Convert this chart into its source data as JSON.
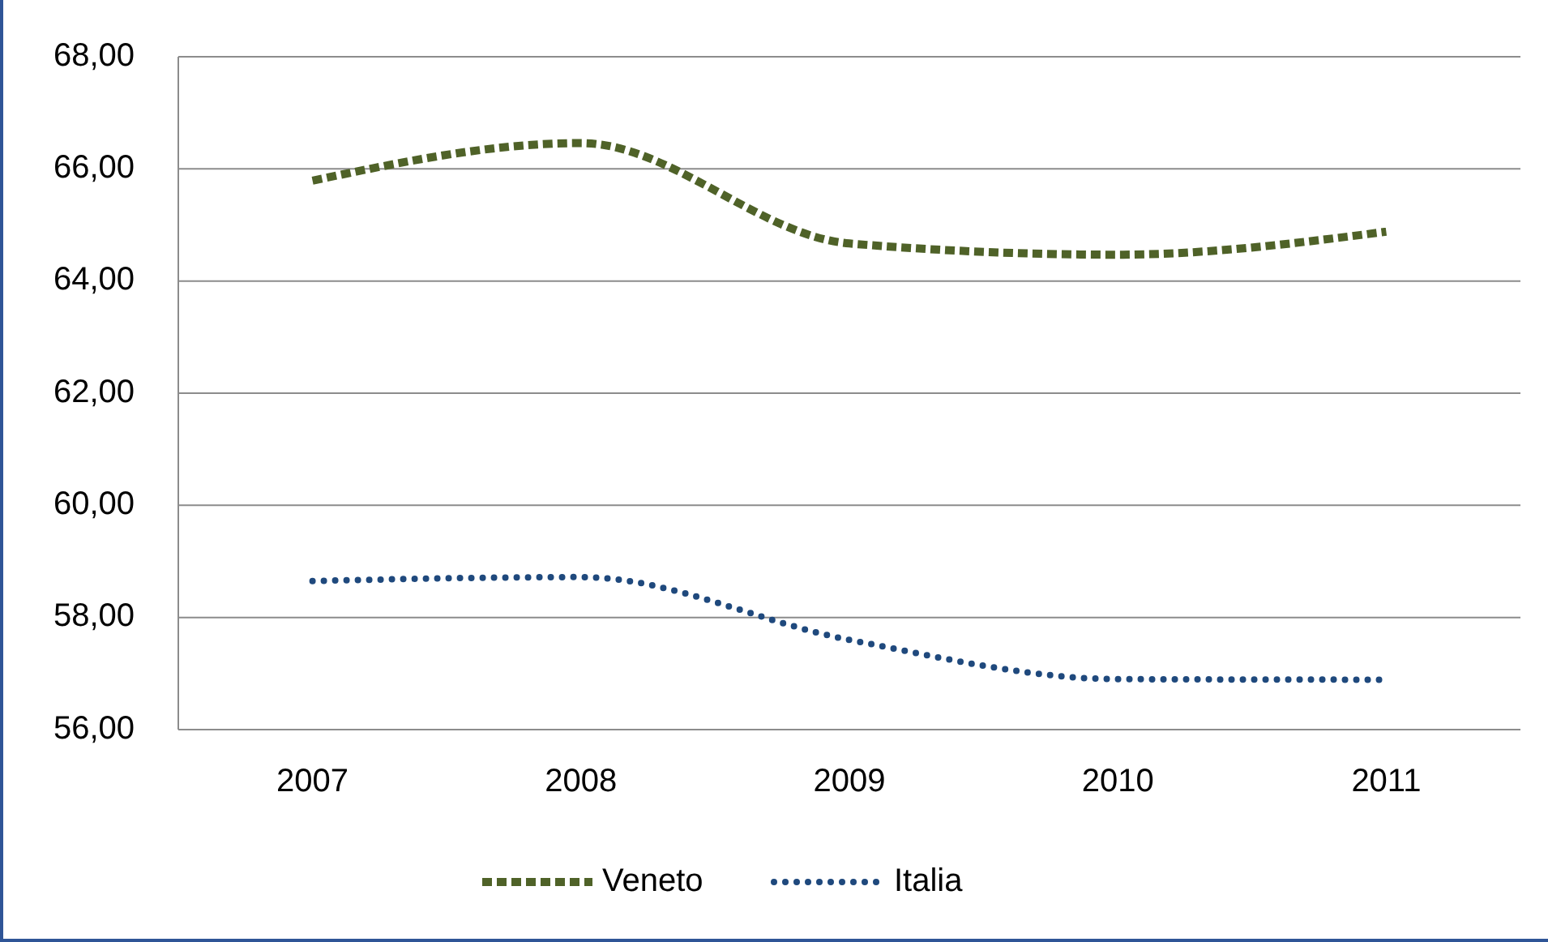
{
  "chart_data": {
    "type": "line",
    "categories": [
      "2007",
      "2008",
      "2009",
      "2010",
      "2011"
    ],
    "series": [
      {
        "name": "Veneto",
        "color": "#4f6228",
        "values": [
          65.79,
          66.46,
          64.67,
          64.47,
          64.88
        ],
        "line_style": "dashed"
      },
      {
        "name": "Italia",
        "color": "#1f497d",
        "values": [
          58.65,
          58.72,
          57.6,
          56.9,
          56.89
        ],
        "line_style": "dotted"
      }
    ],
    "ylim": [
      56,
      68
    ],
    "yticks": [
      {
        "value": 56,
        "label": "56,00"
      },
      {
        "value": 58,
        "label": "58,00"
      },
      {
        "value": 60,
        "label": "60,00"
      },
      {
        "value": 62,
        "label": "62,00"
      },
      {
        "value": 64,
        "label": "64,00"
      },
      {
        "value": 66,
        "label": "66,00"
      },
      {
        "value": 68,
        "label": "68,00"
      }
    ],
    "grid": "y",
    "legend": "bottom",
    "marker": "none"
  }
}
